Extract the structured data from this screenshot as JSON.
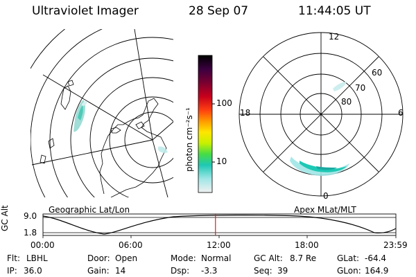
{
  "header": {
    "instrument": "Ultraviolet Imager",
    "date": "28 Sep 07",
    "time": "11:44:05 UT"
  },
  "left_map": {
    "caption": "Geographic Lat/Lon"
  },
  "colorbar": {
    "label": "photon cm⁻²s⁻¹",
    "ticks": [
      "100",
      "10"
    ],
    "scale": "log",
    "colors": [
      "#000000",
      "#3b0040",
      "#7a0030",
      "#c8001c",
      "#ff4010",
      "#ff9a00",
      "#ffe600",
      "#c8f000",
      "#46dc46",
      "#1ec8b4",
      "#a0e6e6",
      "#f0f0f0"
    ]
  },
  "right_map": {
    "caption": "Apex MLat/MLT",
    "mlt_labels": {
      "top": "12",
      "left": "18",
      "right": "6",
      "bottom": "0"
    },
    "lat_labels": [
      "60",
      "70",
      "80"
    ]
  },
  "altitude_plot": {
    "ylabel": "GC Alt",
    "y_ticks": [
      "9.0",
      "1.8"
    ],
    "x_ticks": [
      "00:00",
      "06:00",
      "12:00",
      "18:00",
      "23:59"
    ],
    "cursor_time_hours": 11.73,
    "cursor_color": "#d02020"
  },
  "footer": {
    "flt_label": "Flt:",
    "flt_value": "LBHL",
    "ip_label": "IP:",
    "ip_value": "36.0",
    "door_label": "Door:",
    "door_value": "Open",
    "gain_label": "Gain:",
    "gain_value": "14",
    "mode_label": "Mode:",
    "mode_value": "Normal",
    "dsp_label": "Dsp:",
    "dsp_value": "-3.3",
    "gcalt_label": "GC Alt:",
    "gcalt_value": "8.7 Re",
    "seq_label": "Seq:",
    "seq_value": "39",
    "glat_label": "GLat:",
    "glat_value": "-64.4",
    "glon_label": "GLon:",
    "glon_value": "164.9"
  }
}
